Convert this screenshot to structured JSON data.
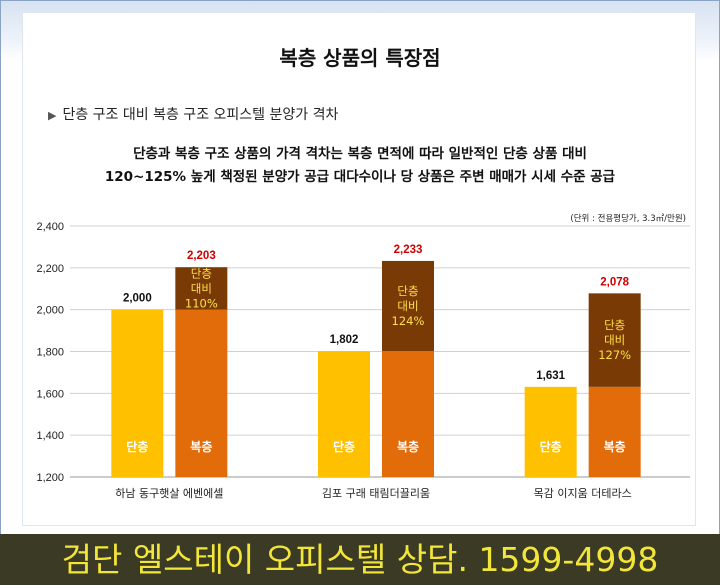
{
  "title": "복층 상품의 특장점",
  "subtitle": "단층 구조 대비 복층 구조 오피스텔 분양가 격차",
  "description": [
    "단층과 복층 구조 상품의 가격 격차는 복층 면적에 따라 일반적인 단층 상품 대비",
    "120~125% 높게 책정된 분양가 공급 대다수이나 당 상품은 주변 매매가 시세 수준 공급"
  ],
  "unit_note": "(단위 : 전용평당가, 3.3㎡/만원)",
  "banner": "검단 엘스테이 오피스텔 상담. 1599-4998",
  "chart_data": {
    "type": "bar",
    "categories": [
      "하남 동구햇살 에벤에셀",
      "김포 구래 태림더끌리움",
      "목감 이지움 더테라스"
    ],
    "series": [
      {
        "name": "단층",
        "values": [
          2000,
          1802,
          1631
        ]
      },
      {
        "name": "복층",
        "values": [
          2203,
          2233,
          2078
        ]
      }
    ],
    "premium_labels": [
      [
        "단층",
        "대비",
        "110%"
      ],
      [
        "단층",
        "대비",
        "124%"
      ],
      [
        "단층",
        "대비",
        "127%"
      ]
    ],
    "ylim": [
      1200,
      2400
    ],
    "yticks": [
      1200,
      1400,
      1600,
      1800,
      2000,
      2200,
      2400
    ],
    "ytick_labels": [
      "1,200",
      "1,400",
      "1,600",
      "1,800",
      "2,000",
      "2,200",
      "2,400"
    ],
    "value_labels": {
      "single": [
        "2,000",
        "1,802",
        "1,631"
      ],
      "duplex": [
        "2,203",
        "2,233",
        "2,078"
      ]
    },
    "colors": {
      "single": "#ffc000",
      "duplex": "#e36c0a",
      "premium": "#7a3a05",
      "duplex_value_text": "#d00000",
      "premium_text": "#ffe14a"
    }
  }
}
